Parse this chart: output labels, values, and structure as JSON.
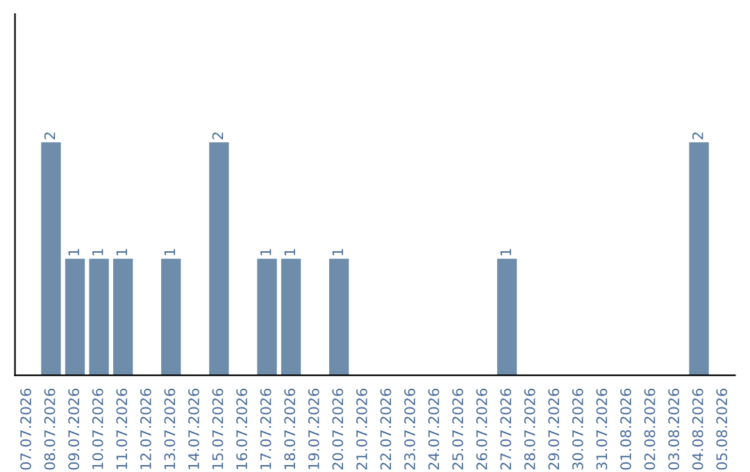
{
  "chart_data": {
    "type": "bar",
    "categories": [
      "07.07.2026",
      "08.07.2026",
      "09.07.2026",
      "10.07.2026",
      "11.07.2026",
      "12.07.2026",
      "13.07.2026",
      "14.07.2026",
      "15.07.2026",
      "16.07.2026",
      "17.07.2026",
      "18.07.2026",
      "19.07.2026",
      "20.07.2026",
      "21.07.2026",
      "22.07.2026",
      "23.07.2026",
      "24.07.2026",
      "25.07.2026",
      "26.07.2026",
      "27.07.2026",
      "28.07.2026",
      "29.07.2026",
      "30.07.2026",
      "31.07.2026",
      "01.08.2026",
      "02.08.2026",
      "03.08.2026",
      "04.08.2026",
      "05.08.2026"
    ],
    "values": [
      0,
      2,
      1,
      1,
      1,
      0,
      1,
      0,
      2,
      0,
      1,
      1,
      0,
      1,
      0,
      0,
      0,
      0,
      0,
      0,
      1,
      0,
      0,
      0,
      0,
      0,
      0,
      0,
      2,
      0
    ],
    "value_labels": [
      null,
      "2",
      "1",
      "1",
      "1",
      null,
      "1",
      null,
      "2",
      null,
      "1",
      "1",
      null,
      "1",
      null,
      null,
      null,
      null,
      null,
      null,
      "1",
      null,
      null,
      null,
      null,
      null,
      null,
      null,
      "2",
      null
    ],
    "color": "#6d8dab",
    "ylim": [
      0,
      3.1
    ],
    "tick_labels": "x",
    "grid": false,
    "legend": false
  }
}
